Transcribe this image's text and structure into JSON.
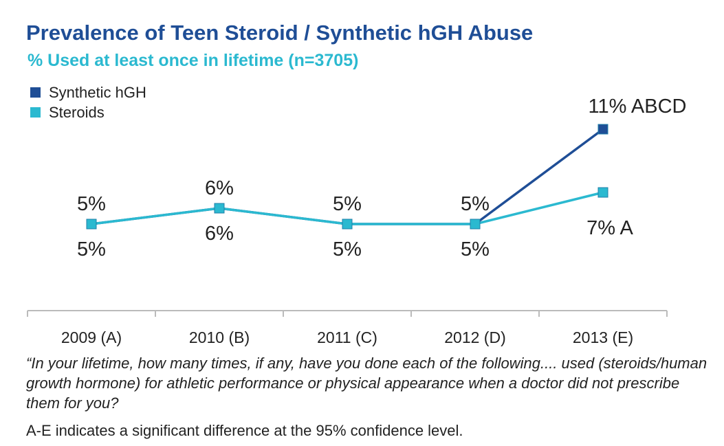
{
  "colors": {
    "title": "#1f4e96",
    "subtitle": "#2bb9d0",
    "hgh": "#1f4e96",
    "steroids": "#2bb9d0",
    "axis": "#bbbbbb",
    "text": "#222222"
  },
  "footnote": {
    "question": "“In your lifetime, how many times, if any, have you done each of the following.... used (steroids/human growth hormone) for athletic performance or physical appearance when a doctor did not prescribe them for you?",
    "significance": "A-E indicates a significant difference at the 95% confidence level."
  },
  "chart_data": {
    "type": "line",
    "title": "Prevalence of Teen Steroid / Synthetic hGH Abuse",
    "subtitle": "% Used at least once in lifetime (n=3705)",
    "categories": [
      "2009 (A)",
      "2010 (B)",
      "2011 (C)",
      "2012 (D)",
      "2013 (E)"
    ],
    "series": [
      {
        "name": "Synthetic hGH",
        "color": "#1f4e96",
        "values": [
          5,
          6,
          5,
          5,
          11
        ],
        "labels": [
          "5%",
          "6%",
          "5%",
          "5%",
          "11% ABCD"
        ],
        "label_position": "above"
      },
      {
        "name": "Steroids",
        "color": "#2bb9d0",
        "values": [
          5,
          6,
          5,
          5,
          7
        ],
        "labels": [
          "5%",
          "6%",
          "5%",
          "5%",
          "7% A"
        ],
        "label_position": "below"
      }
    ],
    "legend_position": "top-left",
    "grid": false,
    "y_axis_visible": false
  }
}
